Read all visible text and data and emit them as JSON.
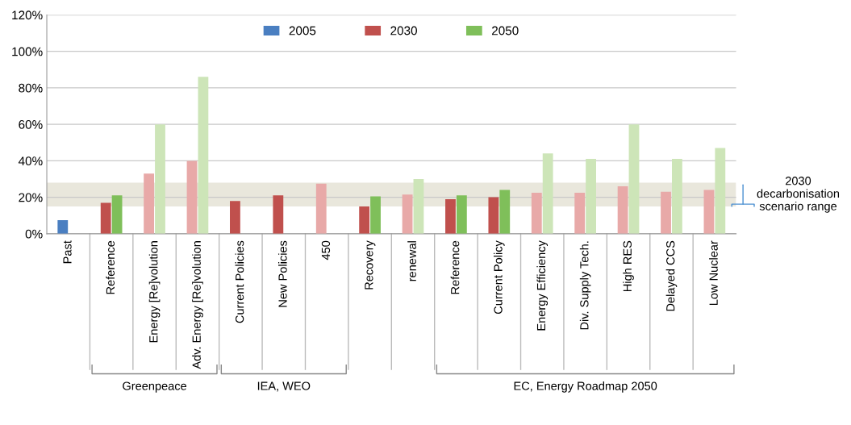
{
  "chart_data": {
    "type": "bar",
    "categories": [
      "Past",
      "Reference",
      "Energy [Re]volution",
      "Adv. Energy [Re]volution",
      "Current Policies",
      "New Policies",
      "450",
      "Recovery",
      "renewal",
      "Reference",
      "Current Policy",
      "Energy Efficiency",
      "Div. Supply Tech.",
      "High RES",
      "Delayed CCS",
      "Low Nuclear"
    ],
    "series": [
      {
        "name": "2005",
        "color": "#4a7fc1",
        "values": [
          7.5,
          null,
          null,
          null,
          null,
          null,
          null,
          null,
          null,
          null,
          null,
          null,
          null,
          null,
          null,
          null
        ]
      },
      {
        "name": "2030",
        "color": "#c0504d",
        "colors": [
          "#c0504d",
          "#c0504d",
          "#e8a9a8",
          "#e8a9a8",
          "#c0504d",
          "#c0504d",
          "#e8a9a8",
          "#c0504d",
          "#e8a9a8",
          "#c0504d",
          "#c0504d",
          "#e8a9a8",
          "#e8a9a8",
          "#e8a9a8",
          "#e8a9a8",
          "#e8a9a8"
        ],
        "values": [
          null,
          17,
          33,
          40,
          18,
          21,
          27.5,
          15,
          21.5,
          19,
          20,
          22.5,
          22.5,
          26,
          23,
          24
        ]
      },
      {
        "name": "2050",
        "color": "#7fbf5a",
        "colors": [
          "#7fbf5a",
          "#7fbf5a",
          "#cde5b8",
          "#cde5b8",
          "#7fbf5a",
          "#7fbf5a",
          "#cde5b8",
          "#7fbf5a",
          "#cde5b8",
          "#7fbf5a",
          "#7fbf5a",
          "#cde5b8",
          "#cde5b8",
          "#cde5b8",
          "#cde5b8",
          "#cde5b8"
        ],
        "values": [
          null,
          21,
          60,
          86,
          null,
          null,
          null,
          20.5,
          30,
          21,
          24,
          44,
          41,
          60,
          41,
          47
        ]
      }
    ],
    "ylim": [
      0,
      120
    ],
    "yticks": [
      {
        "value": 0,
        "label": "0%"
      },
      {
        "value": 20,
        "label": "20%"
      },
      {
        "value": 40,
        "label": "40%"
      },
      {
        "value": 60,
        "label": "60%"
      },
      {
        "value": 80,
        "label": "80%"
      },
      {
        "value": 100,
        "label": "100%"
      },
      {
        "value": 120,
        "label": "120%"
      }
    ],
    "bands": [
      {
        "axis": "y",
        "from": 15,
        "to": 28,
        "label": "2030\ndecarbonisation\nscenario range",
        "color": "#e9e7dc"
      }
    ],
    "annotations": [
      "Greenpeace",
      "IEA, WEO",
      "EC, Energy Roadmap 2050"
    ],
    "grid": "y",
    "legend": "top"
  }
}
